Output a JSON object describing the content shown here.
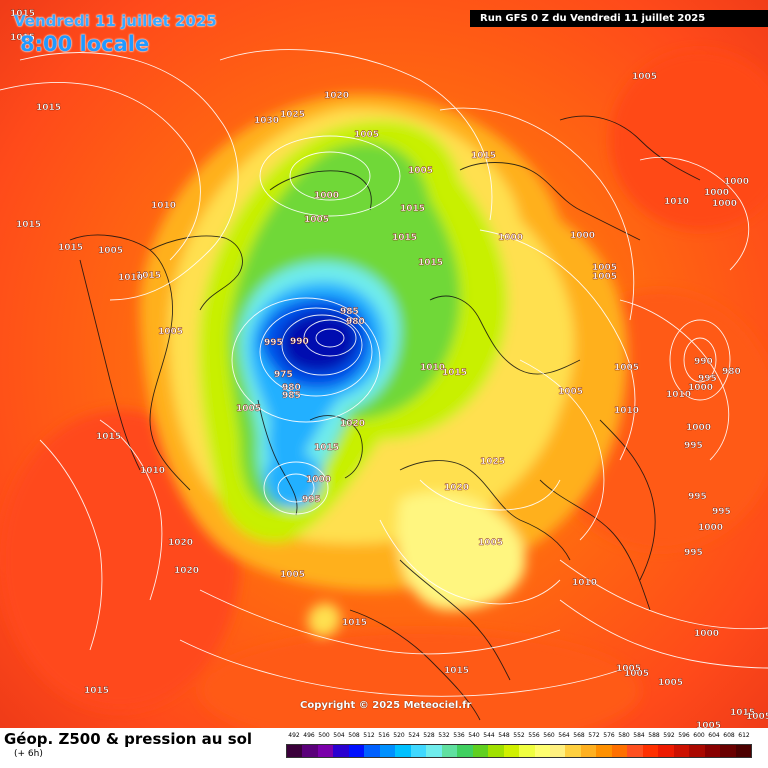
{
  "header": {
    "date": "Vendredi 11 juillet 2025",
    "time": "8:00 locale",
    "run": "Run GFS 0 Z du Vendredi 11 juillet 2025"
  },
  "footer": {
    "title": "Géop. Z500 & pression au sol",
    "subtitle": "(+ 6h)",
    "copyright": "Copyright © 2025 Meteociel.fr"
  },
  "legend": {
    "ticks": [
      "492",
      "496",
      "500",
      "504",
      "508",
      "512",
      "516",
      "520",
      "524",
      "528",
      "532",
      "536",
      "540",
      "544",
      "548",
      "552",
      "556",
      "560",
      "564",
      "568",
      "572",
      "576",
      "580",
      "584",
      "588",
      "592",
      "596",
      "600",
      "604",
      "608",
      "612"
    ],
    "colors": [
      "#3a003a",
      "#5a007a",
      "#7a00aa",
      "#2a00d0",
      "#0010ff",
      "#0060ff",
      "#0090ff",
      "#00c0ff",
      "#40d8ff",
      "#70ecec",
      "#60e0a0",
      "#40d060",
      "#60d020",
      "#a0e000",
      "#d0f000",
      "#f0ff40",
      "#ffff70",
      "#fff080",
      "#ffd040",
      "#ffb020",
      "#ff9000",
      "#ff7000",
      "#ff5020",
      "#ff3000",
      "#ee1a00",
      "#cc1000",
      "#aa0800",
      "#880000",
      "#6a0000",
      "#4c0000"
    ]
  },
  "labels": [
    {
      "text": "1015"
    },
    {
      "text": "1015"
    },
    {
      "text": "1015"
    },
    {
      "text": "1015"
    },
    {
      "text": "1020"
    },
    {
      "text": "1030"
    },
    {
      "text": "1025"
    },
    {
      "text": "1005"
    },
    {
      "text": "1005"
    },
    {
      "text": "1015"
    },
    {
      "text": "1005"
    },
    {
      "text": "1000"
    },
    {
      "text": "1005"
    },
    {
      "text": "1015"
    },
    {
      "text": "1010"
    },
    {
      "text": "1015"
    },
    {
      "text": "1005"
    },
    {
      "text": "1015"
    },
    {
      "text": "1000"
    },
    {
      "text": "1000"
    },
    {
      "text": "1010"
    },
    {
      "text": "1005"
    },
    {
      "text": "1005"
    },
    {
      "text": "1000"
    },
    {
      "text": "1000"
    },
    {
      "text": "1000"
    },
    {
      "text": "1010"
    },
    {
      "text": "1015"
    },
    {
      "text": "1005"
    },
    {
      "text": "985"
    },
    {
      "text": "980"
    },
    {
      "text": "995"
    },
    {
      "text": "990"
    },
    {
      "text": "975"
    },
    {
      "text": "980"
    },
    {
      "text": "985"
    },
    {
      "text": "1005"
    },
    {
      "text": "1010"
    },
    {
      "text": "1015"
    },
    {
      "text": "1005"
    },
    {
      "text": "990"
    },
    {
      "text": "995"
    },
    {
      "text": "980"
    },
    {
      "text": "1000"
    },
    {
      "text": "1010"
    },
    {
      "text": "1005"
    },
    {
      "text": "1000"
    },
    {
      "text": "1020"
    },
    {
      "text": "1010"
    },
    {
      "text": "1015"
    },
    {
      "text": "1010"
    },
    {
      "text": "995"
    },
    {
      "text": "1015"
    },
    {
      "text": "1015"
    },
    {
      "text": "1025"
    },
    {
      "text": "1000"
    },
    {
      "text": "995"
    },
    {
      "text": "1020"
    },
    {
      "text": "995"
    },
    {
      "text": "995"
    },
    {
      "text": "1000"
    },
    {
      "text": "1020"
    },
    {
      "text": "1020"
    },
    {
      "text": "1005"
    },
    {
      "text": "995"
    },
    {
      "text": "1005"
    },
    {
      "text": "1010"
    },
    {
      "text": "1015"
    },
    {
      "text": "1000"
    },
    {
      "text": "1015"
    },
    {
      "text": "1005"
    },
    {
      "text": "1005"
    },
    {
      "text": "1005"
    },
    {
      "text": "1015"
    },
    {
      "text": "1015"
    },
    {
      "text": "1005"
    },
    {
      "text": "1005"
    }
  ]
}
